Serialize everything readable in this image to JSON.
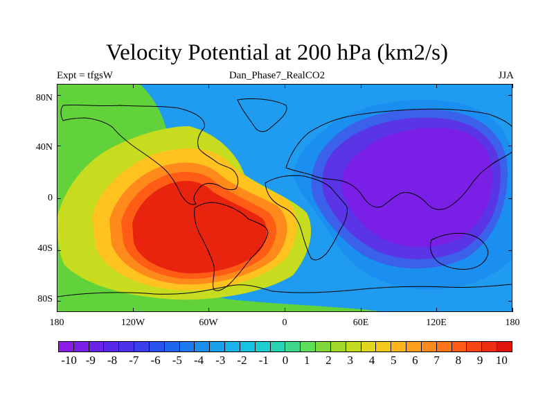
{
  "figure": {
    "title": "Velocity Potential at 200 hPa (km2/s)",
    "left_label": "Expt = tfgsW",
    "center_label": "Dan_Phase7_RealCO2",
    "right_label": "JJA"
  },
  "map": {
    "lat_labels": [
      "80N",
      "40N",
      "0",
      "40S",
      "80S"
    ],
    "lon_labels": [
      "180",
      "120W",
      "60W",
      "0",
      "60E",
      "120E",
      "180"
    ],
    "background_color": "#1f9cf0",
    "field": [
      {
        "name": "pacific-east-green",
        "color": "#62d23a"
      },
      {
        "name": "pacific-yellow",
        "color": "#c7dc1e"
      },
      {
        "name": "yellow-orange",
        "color": "#ffc21e"
      },
      {
        "name": "orange",
        "color": "#ff8a1c"
      },
      {
        "name": "orange-red",
        "color": "#ff5c16"
      },
      {
        "name": "red-core",
        "color": "#e8230e"
      },
      {
        "name": "eurasia-light-blue",
        "color": "#1a8ff0"
      },
      {
        "name": "eurasia-blue",
        "color": "#3b60ea"
      },
      {
        "name": "eurasia-indigo",
        "color": "#5a35e6"
      },
      {
        "name": "eurasia-core",
        "color": "#7a1fe6"
      }
    ]
  },
  "colorbar": {
    "colors": [
      "#8c1de6",
      "#7a20e6",
      "#6a24e8",
      "#5a29e8",
      "#4a31ea",
      "#3a3fec",
      "#2a52ee",
      "#1e66f0",
      "#1b7af0",
      "#1b8ef0",
      "#1aa1ee",
      "#18b3ea",
      "#16c3e4",
      "#1dcecf",
      "#27d3b2",
      "#3dd88c",
      "#5edd5a",
      "#7fd83a",
      "#a2d82a",
      "#c1dc20",
      "#dfd51c",
      "#f5c81c",
      "#ffb41c",
      "#ffa01c",
      "#ff8a1c",
      "#ff7418",
      "#ff5c16",
      "#f84412",
      "#ec2e10",
      "#e0140c"
    ],
    "labels": [
      "-10",
      "-9",
      "-8",
      "-7",
      "-6",
      "-5",
      "-4",
      "-3",
      "-2",
      "-1",
      "0",
      "1",
      "2",
      "3",
      "4",
      "5",
      "6",
      "7",
      "8",
      "9",
      "10"
    ]
  }
}
